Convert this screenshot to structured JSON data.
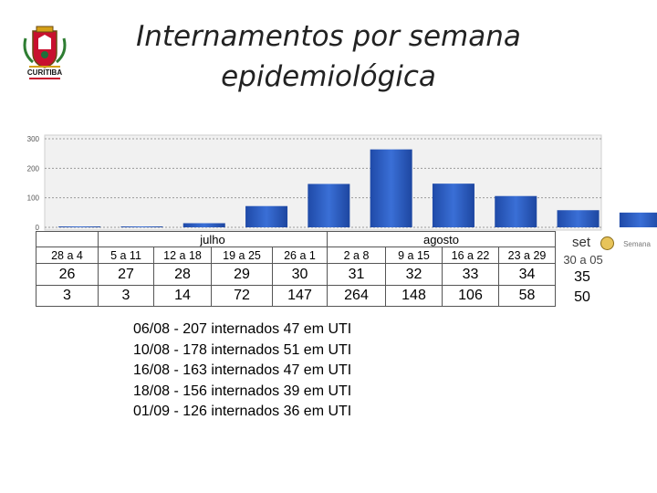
{
  "logo": {
    "text": "CURITIBA"
  },
  "title": {
    "line1": "Internamentos por semana",
    "line2": "epidemiológica"
  },
  "chart_data": {
    "type": "bar",
    "title": "",
    "xlabel": "",
    "ylabel": "",
    "ylim": [
      0,
      300
    ],
    "yticks": [
      0,
      100,
      200,
      300
    ],
    "grid": true,
    "categories": [
      "26",
      "27",
      "28",
      "29",
      "30",
      "31",
      "32",
      "33",
      "34"
    ],
    "values": [
      3,
      3,
      14,
      72,
      147,
      264,
      148,
      106,
      58
    ],
    "bar_color": "#2d5bbf",
    "partial_last_bar": {
      "category": "35",
      "value": 50
    }
  },
  "table": {
    "months": [
      {
        "label": "",
        "span": 1
      },
      {
        "label": "julho",
        "span": 4
      },
      {
        "label": "agosto",
        "span": 5
      }
    ],
    "weeks": [
      "28 a 4",
      "5 a 11",
      "12 a 18",
      "19 a 25",
      "26 a 1",
      "2 a 8",
      "9 a 15",
      "16 a 22",
      "23 a 29"
    ],
    "epi_weeks": [
      "26",
      "27",
      "28",
      "29",
      "30",
      "31",
      "32",
      "33",
      "34"
    ],
    "counts": [
      "3",
      "3",
      "14",
      "72",
      "147",
      "264",
      "148",
      "106",
      "58"
    ]
  },
  "extra_column": {
    "month": "set",
    "week": "30 a 05",
    "epi": "35",
    "count": "50",
    "icon_label": "Semana"
  },
  "notes": [
    "06/08 - 207 internados 47 em UTI",
    "10/08 - 178 internados 51 em UTI",
    "16/08 - 163 internados 47 em UTI",
    "18/08 - 156 internados 39 em UTI",
    "01/09 - 126 internados 36 em UTI"
  ]
}
